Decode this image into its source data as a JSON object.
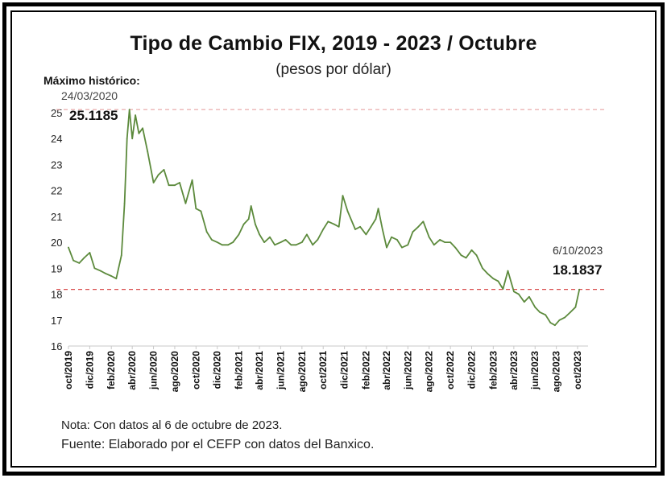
{
  "title": "Tipo de Cambio FIX, 2019 - 2023 / Octubre",
  "subtitle": "(pesos por dólar)",
  "annotations": {
    "max_label": "Máximo histórico:",
    "max_date": "24/03/2020",
    "max_value": "25.1185",
    "last_date": "6/10/2023",
    "last_value": "18.1837"
  },
  "note": "Nota: Con datos al 6 de octubre de 2023.",
  "source": "Fuente: Elaborado por el CEFP con datos del Banxico.",
  "colors": {
    "line": "#5c8a3c",
    "max_reference": "#e8a3a3",
    "last_reference": "#d94c4c",
    "frame": "#000000"
  },
  "chart_data": {
    "type": "line",
    "title": "Tipo de Cambio FIX, 2019 - 2023 / Octubre",
    "ylabel": "",
    "xlabel": "",
    "ylim": [
      16,
      25
    ],
    "yticks": [
      16,
      17,
      18,
      19,
      20,
      21,
      22,
      23,
      24,
      25
    ],
    "xlim": [
      "2019-10-01",
      "2023-10-31"
    ],
    "xticks": [
      "oct/2019",
      "dic/2019",
      "feb/2020",
      "abr/2020",
      "jun/2020",
      "ago/2020",
      "oct/2020",
      "dic/2020",
      "feb/2021",
      "abr/2021",
      "jun/2021",
      "ago/2021",
      "oct/2021",
      "dic/2021",
      "feb/2022",
      "abr/2022",
      "jun/2022",
      "ago/2022",
      "oct/2022",
      "dic/2022",
      "feb/2023",
      "abr/2023",
      "jun/2023",
      "ago/2023",
      "oct/2023"
    ],
    "reference_lines": [
      {
        "value": 25.1185,
        "style": "dashed"
      },
      {
        "value": 18.1837,
        "style": "dashed"
      }
    ],
    "series": [
      {
        "x": [
          "2019-10-01",
          "2019-10-15",
          "2019-11-01",
          "2019-11-15",
          "2019-12-01",
          "2019-12-15",
          "2020-01-01",
          "2020-01-15",
          "2020-02-01",
          "2020-02-15",
          "2020-03-01",
          "2020-03-10",
          "2020-03-17",
          "2020-03-24",
          "2020-04-01",
          "2020-04-10",
          "2020-04-20",
          "2020-05-01",
          "2020-05-15",
          "2020-06-01",
          "2020-06-15",
          "2020-07-01",
          "2020-07-15",
          "2020-08-01",
          "2020-08-15",
          "2020-09-01",
          "2020-09-20",
          "2020-10-01",
          "2020-10-15",
          "2020-11-01",
          "2020-11-15",
          "2020-12-01",
          "2020-12-15",
          "2021-01-01",
          "2021-01-15",
          "2021-02-01",
          "2021-02-15",
          "2021-03-01",
          "2021-03-08",
          "2021-03-20",
          "2021-04-01",
          "2021-04-15",
          "2021-05-01",
          "2021-05-15",
          "2021-06-01",
          "2021-06-15",
          "2021-07-01",
          "2021-07-15",
          "2021-08-01",
          "2021-08-15",
          "2021-09-01",
          "2021-09-15",
          "2021-10-01",
          "2021-10-15",
          "2021-11-01",
          "2021-11-15",
          "2021-11-26",
          "2021-12-10",
          "2022-01-01",
          "2022-01-15",
          "2022-02-01",
          "2022-02-15",
          "2022-03-01",
          "2022-03-08",
          "2022-03-20",
          "2022-04-01",
          "2022-04-15",
          "2022-05-01",
          "2022-05-15",
          "2022-06-01",
          "2022-06-15",
          "2022-07-01",
          "2022-07-15",
          "2022-08-01",
          "2022-08-15",
          "2022-09-01",
          "2022-09-15",
          "2022-10-01",
          "2022-10-15",
          "2022-11-01",
          "2022-11-15",
          "2022-12-01",
          "2022-12-15",
          "2023-01-01",
          "2023-01-15",
          "2023-02-01",
          "2023-02-15",
          "2023-03-01",
          "2023-03-15",
          "2023-04-01",
          "2023-04-15",
          "2023-05-01",
          "2023-05-15",
          "2023-06-01",
          "2023-06-15",
          "2023-07-01",
          "2023-07-15",
          "2023-07-28",
          "2023-08-10",
          "2023-08-25",
          "2023-09-10",
          "2023-09-25",
          "2023-10-06"
        ],
        "values": [
          19.8,
          19.3,
          19.2,
          19.4,
          19.6,
          19.0,
          18.9,
          18.8,
          18.7,
          18.6,
          19.5,
          21.5,
          24.0,
          25.12,
          24.0,
          24.9,
          24.2,
          24.4,
          23.5,
          22.3,
          22.6,
          22.8,
          22.2,
          22.2,
          22.3,
          21.5,
          22.4,
          21.3,
          21.2,
          20.4,
          20.1,
          20.0,
          19.9,
          19.9,
          20.0,
          20.3,
          20.7,
          20.9,
          21.4,
          20.7,
          20.3,
          20.0,
          20.2,
          19.9,
          20.0,
          20.1,
          19.9,
          19.9,
          20.0,
          20.3,
          19.9,
          20.1,
          20.5,
          20.8,
          20.7,
          20.6,
          21.8,
          21.2,
          20.5,
          20.6,
          20.3,
          20.6,
          20.9,
          21.3,
          20.5,
          19.8,
          20.2,
          20.1,
          19.8,
          19.9,
          20.4,
          20.6,
          20.8,
          20.2,
          19.9,
          20.1,
          20.0,
          20.0,
          19.8,
          19.5,
          19.4,
          19.7,
          19.5,
          19.0,
          18.8,
          18.6,
          18.5,
          18.2,
          18.9,
          18.1,
          18.0,
          17.7,
          17.9,
          17.5,
          17.3,
          17.2,
          16.9,
          16.8,
          17.0,
          17.1,
          17.3,
          17.5,
          18.18
        ]
      }
    ]
  }
}
